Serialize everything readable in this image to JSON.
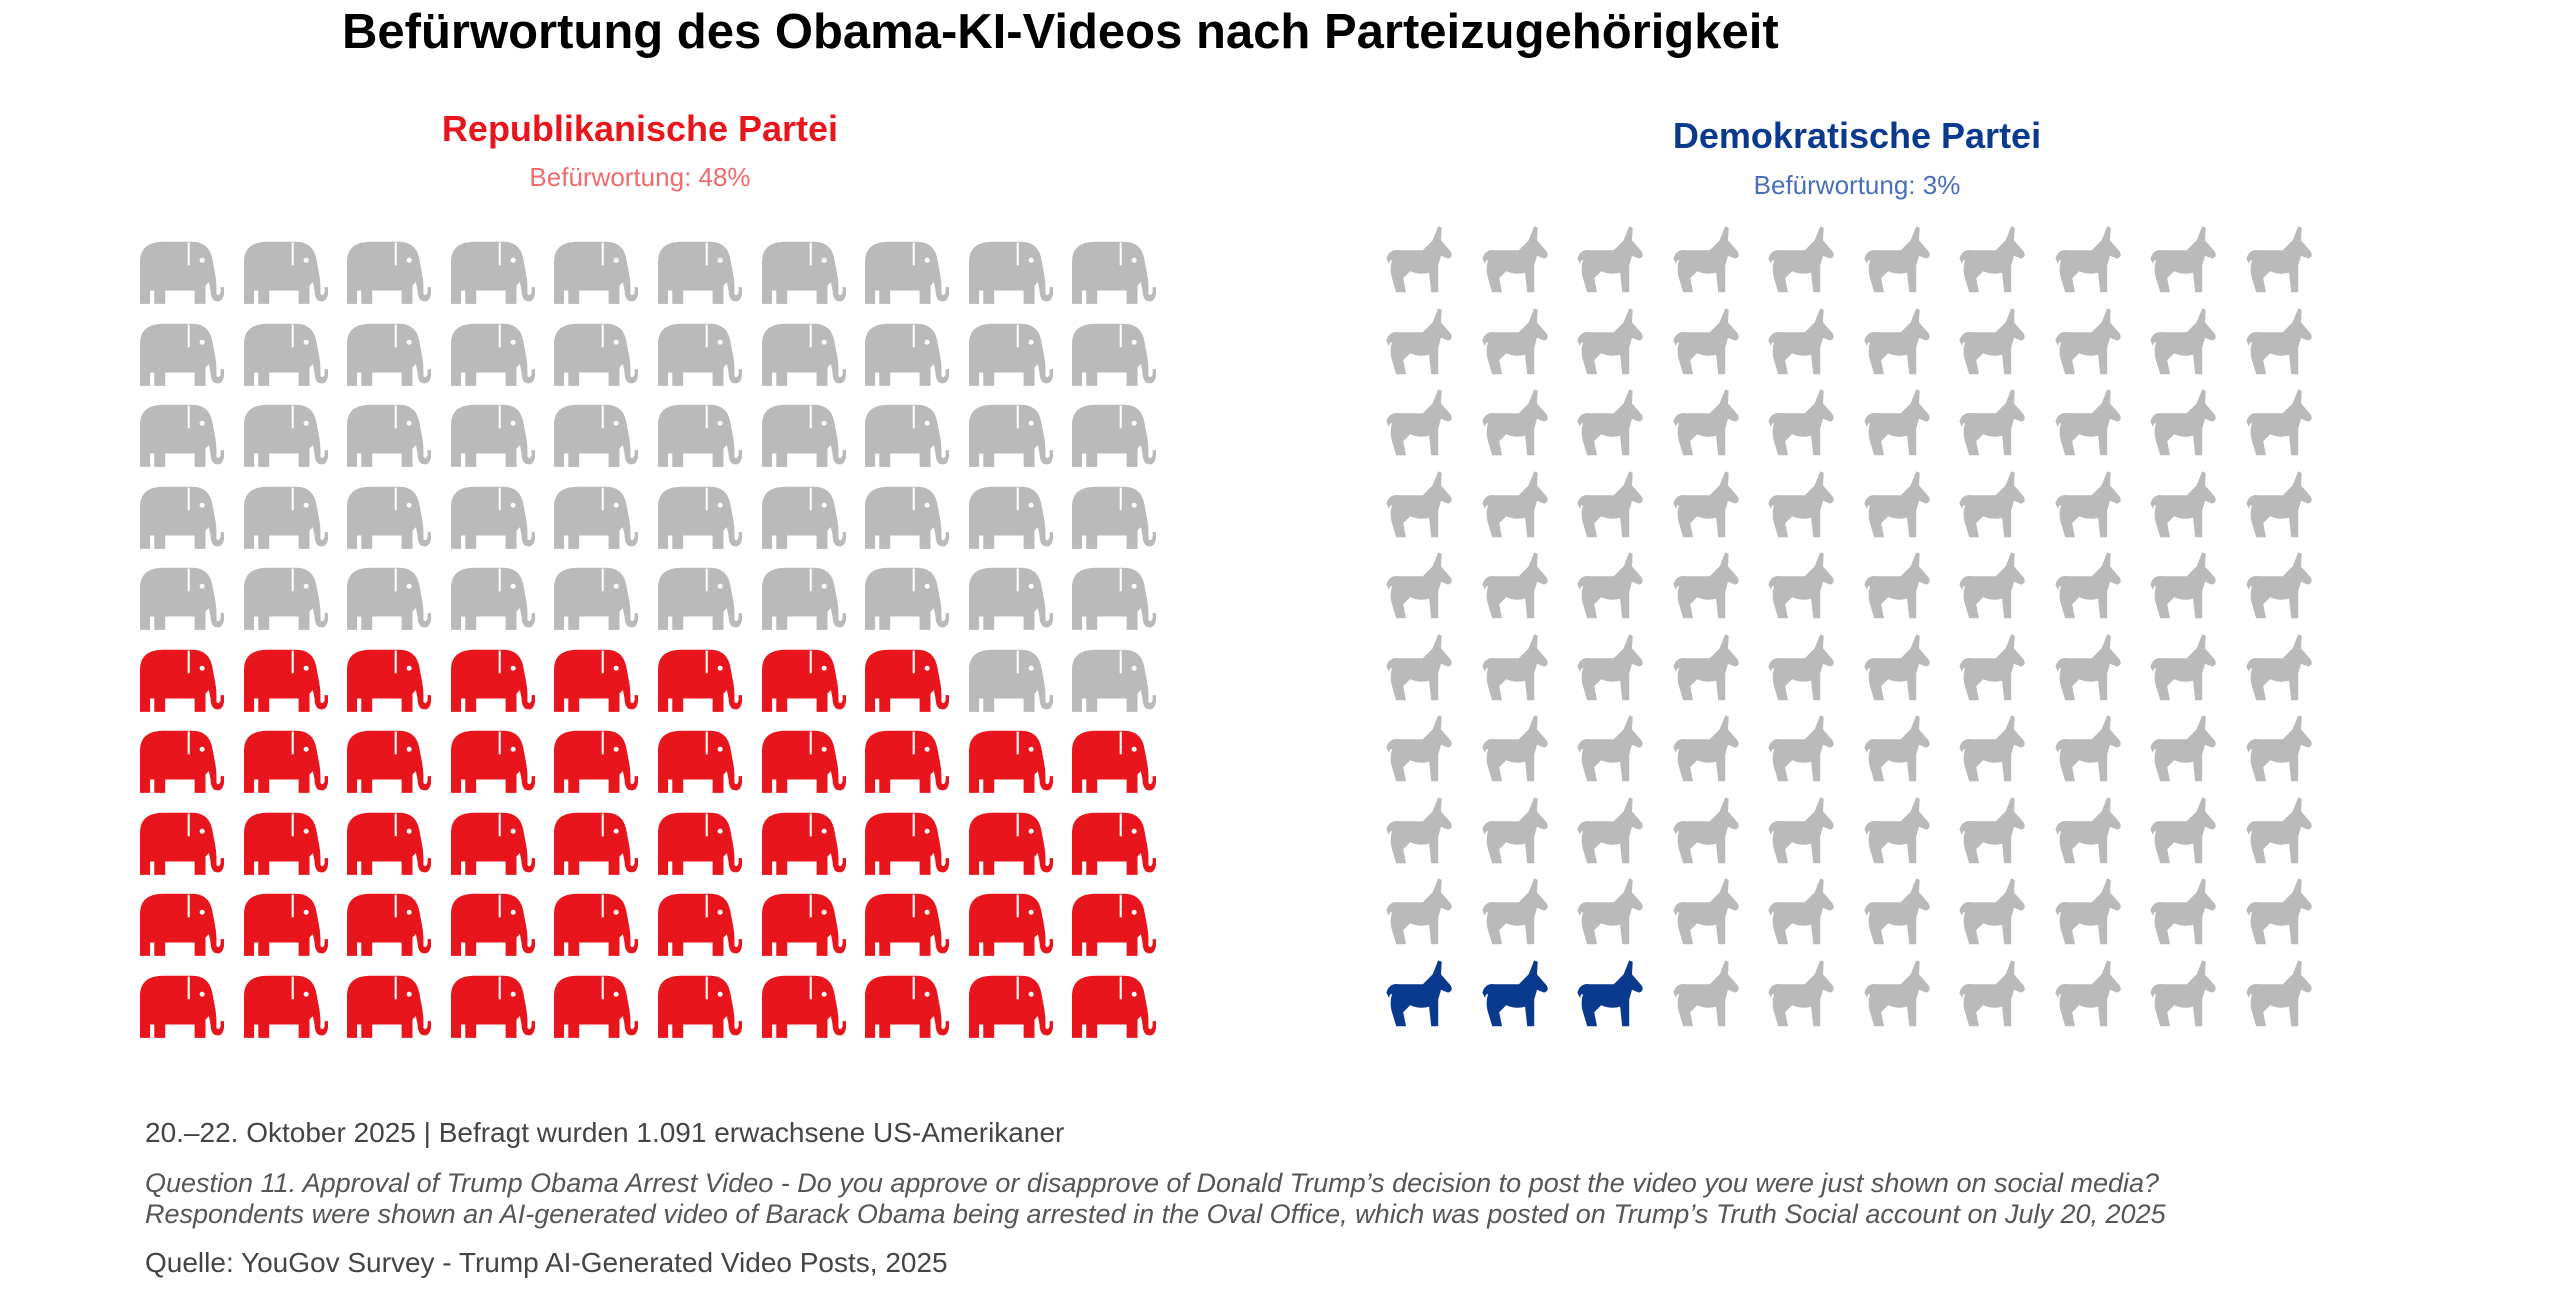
{
  "title": "Befürwortung des Obama-KI-Videos nach Parteizugehörigkeit",
  "colors": {
    "republican": "#e8161c",
    "democrat": "#0a3a8e",
    "neutral": "#bababa"
  },
  "chart_data": {
    "type": "pictograph",
    "title": "Befürwortung des Obama-KI-Videos nach Parteizugehörigkeit",
    "panels": [
      {
        "name": "Republikanische Partei",
        "subtitle": "Befürwortung: 48%",
        "icon": "elephant-icon",
        "total": 100,
        "highlighted": 48,
        "value_percent": 48,
        "grid": "10x10",
        "fill_order": "bottom-left"
      },
      {
        "name": "Demokratische Partei",
        "subtitle": "Befürwortung: 3%",
        "icon": "donkey-icon",
        "total": 100,
        "highlighted": 3,
        "value_percent": 3,
        "grid": "10x10",
        "fill_order": "bottom-left"
      }
    ]
  },
  "footer": {
    "meta": "20.–22. Oktober 2025 | Befragt wurden 1.091 erwachsene US-Amerikaner",
    "question_line1": "Question 11. Approval of Trump Obama Arrest Video - Do you approve or disapprove of Donald Trump’s decision to post the video you were just shown on social media?",
    "question_line2": "Respondents were shown an AI-generated video of Barack Obama being arrested in the Oval Office, which was posted on Trump’s Truth Social account on July 20, 2025",
    "source": "Quelle: YouGov Survey - Trump AI-Generated Video Posts, 2025"
  }
}
